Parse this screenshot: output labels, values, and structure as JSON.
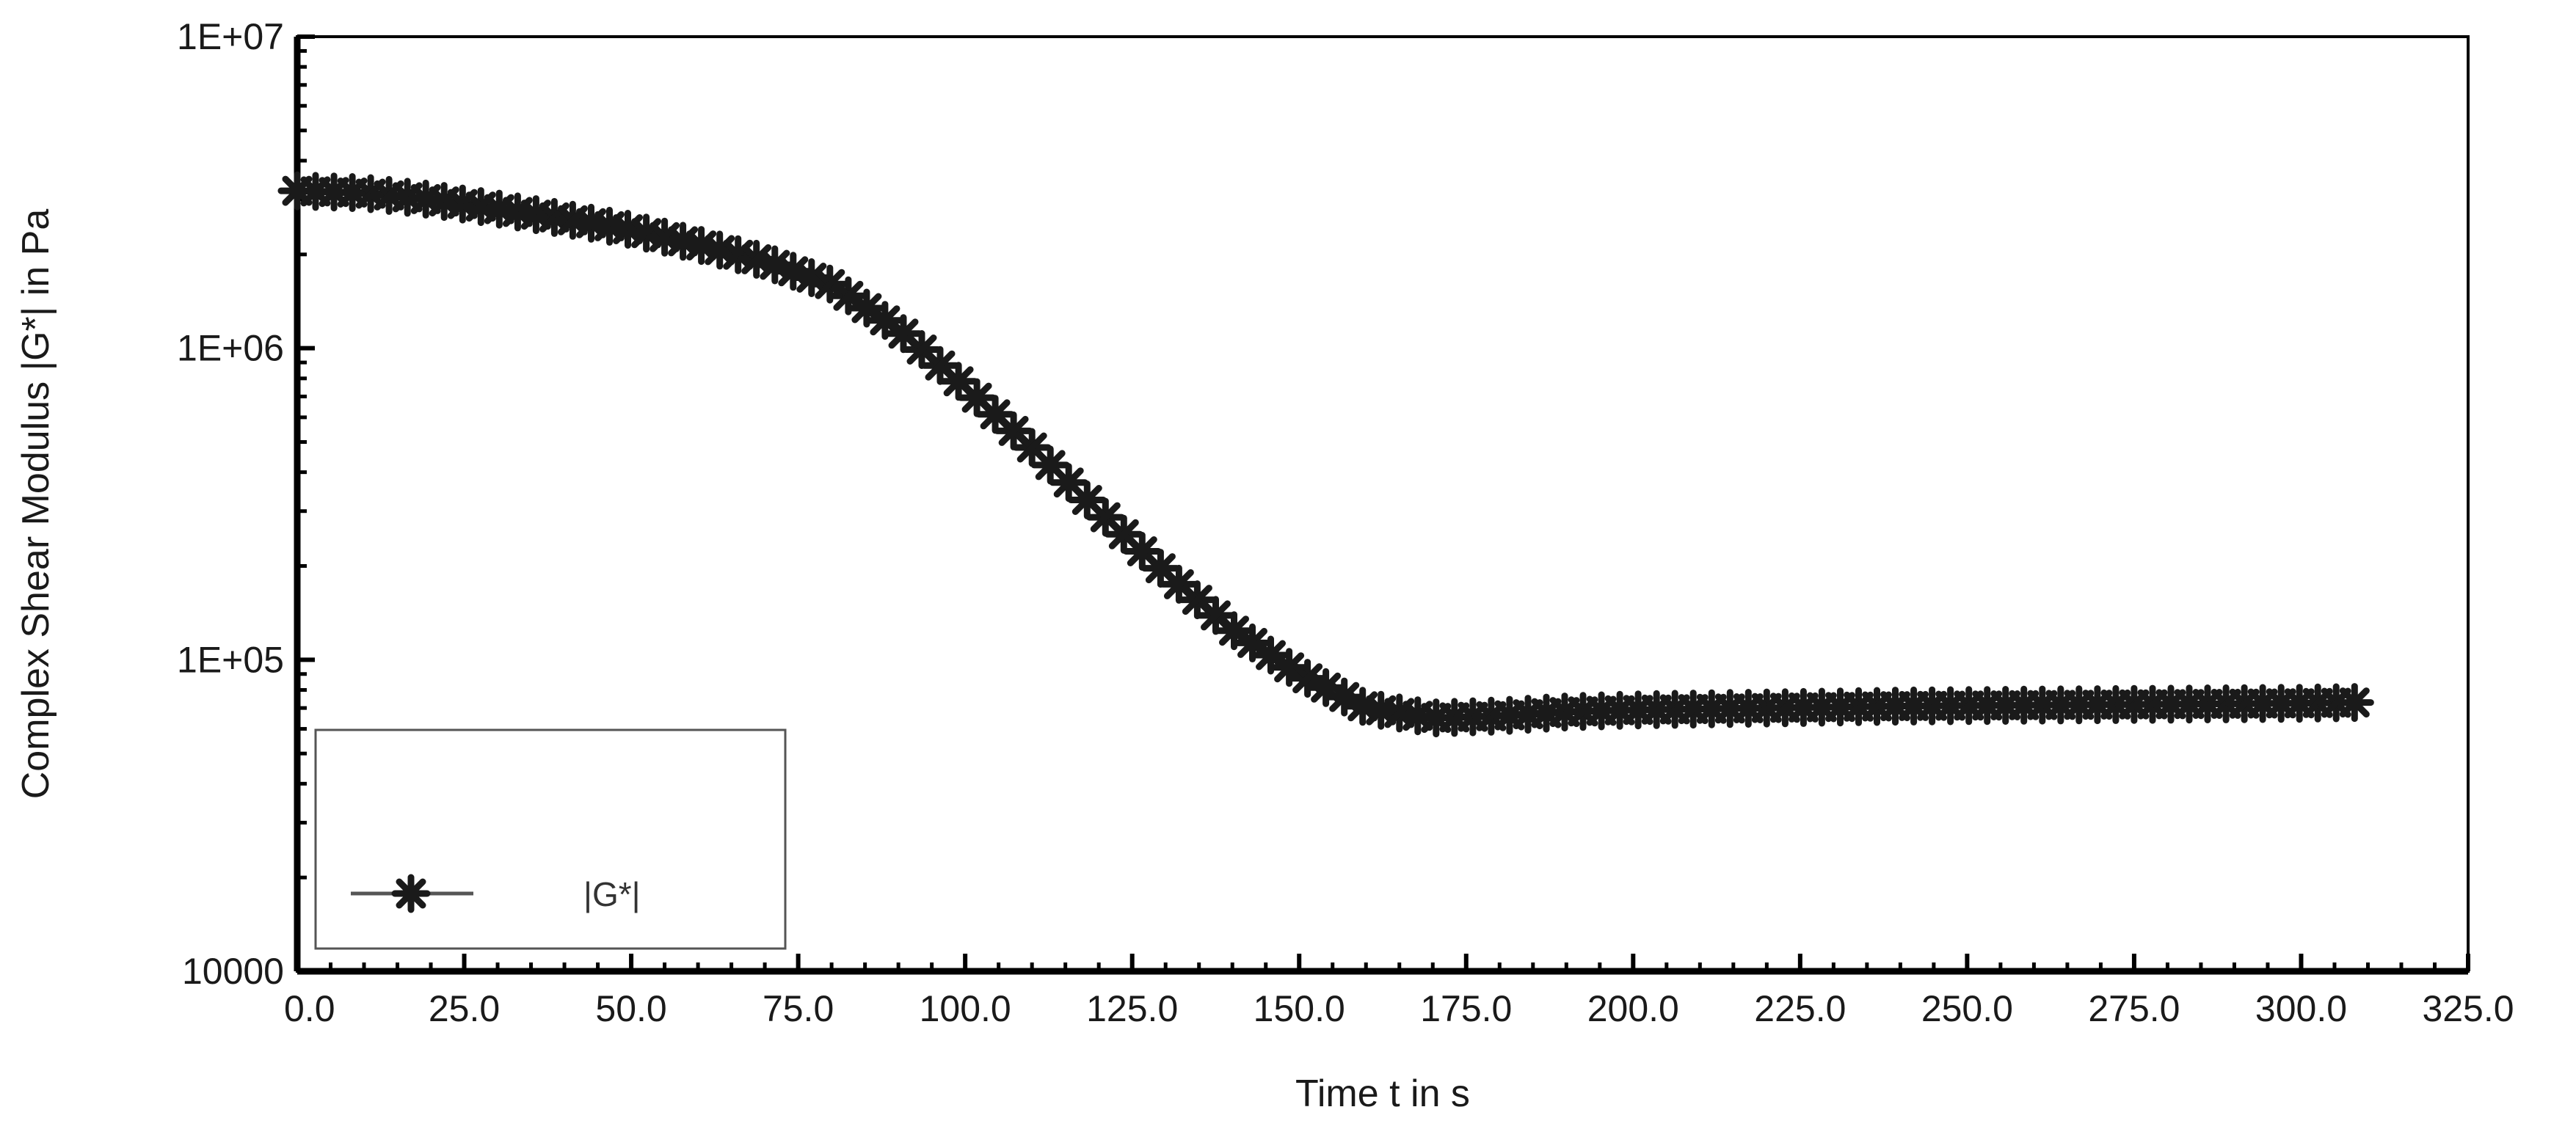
{
  "chart_data": {
    "type": "scatter",
    "xlabel": "Time  t  in s",
    "ylabel": "Complex Shear Modulus  |G*|  in Pa",
    "xlim": [
      0,
      325
    ],
    "ylim": [
      10000,
      10000000
    ],
    "yscale": "log",
    "x_ticks": [
      "0.0",
      "25.0",
      "50.0",
      "75.0",
      "100.0",
      "125.0",
      "150.0",
      "175.0",
      "200.0",
      "225.0",
      "250.0",
      "275.0",
      "300.0",
      "325.0"
    ],
    "y_ticks": [
      "1E+07",
      "1E+06",
      "1E+05",
      "10000"
    ],
    "legend_position": "bottom-left",
    "grid": false,
    "series": [
      {
        "name": "|G*|",
        "marker": "asterisk",
        "color": "#1a1a1a",
        "x": [
          0,
          10,
          20,
          30,
          40,
          50,
          60,
          70,
          80,
          90,
          100,
          110,
          120,
          130,
          140,
          150,
          160,
          170,
          180,
          190,
          200,
          220,
          240,
          260,
          280,
          300,
          310
        ],
        "y": [
          3200000,
          3150000,
          3000000,
          2800000,
          2600000,
          2400000,
          2150000,
          1900000,
          1600000,
          1150000,
          750000,
          480000,
          300000,
          190000,
          125000,
          90000,
          70000,
          65000,
          66000,
          68000,
          69000,
          70000,
          71000,
          71500,
          72000,
          72500,
          73000
        ]
      }
    ]
  }
}
